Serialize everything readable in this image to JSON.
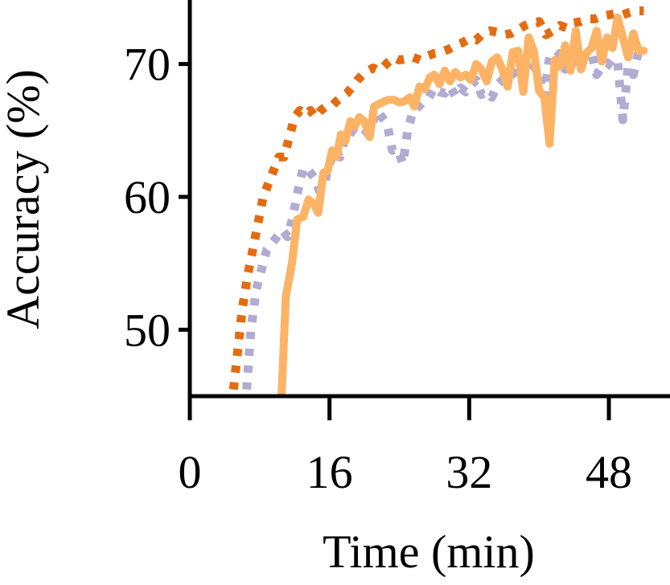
{
  "chart_data": {
    "type": "line",
    "title": "",
    "xlabel": "Time (min)",
    "ylabel": "Accuracy (%)",
    "xlim": [
      0,
      55
    ],
    "ylim": [
      45,
      75
    ],
    "xticks": [
      0,
      16,
      32,
      48
    ],
    "yticks": [
      50,
      60,
      70
    ],
    "grid": false,
    "legend": "none",
    "series": [
      {
        "name": "series-solid-orange",
        "color": "#FDB366",
        "style": "solid",
        "x": [
          10.5,
          11,
          11.7,
          12.3,
          13,
          13.6,
          14.2,
          14.7,
          15.3,
          15.8,
          16.3,
          16.8,
          17.3,
          17.8,
          18.4,
          18.9,
          19.4,
          20,
          20.6,
          21.1,
          21.7,
          22.3,
          22.8,
          23.4,
          24,
          24.6,
          25.2,
          25.7,
          26.3,
          26.9,
          27.5,
          28,
          28.6,
          29.2,
          29.8,
          30.4,
          31,
          31.6,
          32.2,
          32.8,
          33.4,
          34,
          34.6,
          35.2,
          35.8,
          36.4,
          37,
          37.6,
          38.2,
          38.8,
          39.4,
          40,
          40.6,
          41.2,
          41.8,
          42.4,
          43,
          43.6,
          44.2,
          44.8,
          45.4,
          46,
          46.6,
          47.2,
          47.8,
          48.4,
          49,
          49.6,
          50.2,
          50.8,
          51.4,
          52
        ],
        "y": [
          45,
          52.5,
          55,
          58.3,
          58.5,
          59.8,
          59.5,
          58.8,
          61.8,
          62,
          63.5,
          63,
          64.7,
          64.2,
          65.7,
          65.3,
          66,
          65.7,
          64.5,
          66.8,
          67,
          67.2,
          67.3,
          67.3,
          67.1,
          67.2,
          67.5,
          66.8,
          68.3,
          68.1,
          69,
          69.2,
          68.5,
          69.5,
          68.7,
          69.4,
          69,
          69.2,
          68.8,
          70,
          69.6,
          68.7,
          70.2,
          70.5,
          69.6,
          68.3,
          70.9,
          71,
          67.9,
          72,
          71,
          68,
          67.5,
          64,
          70.3,
          69.8,
          71.4,
          69.5,
          72.5,
          69.6,
          70.8,
          71.2,
          72.5,
          70.2,
          72,
          71.2,
          73.5,
          72,
          70.5,
          72.3,
          71,
          71
        ]
      },
      {
        "name": "series-dotted-dark-orange",
        "color": "#E56B10",
        "style": "dotted",
        "x": [
          5,
          5.5,
          6,
          6.6,
          7.2,
          7.8,
          8.4,
          9,
          9.6,
          10.2,
          10.8,
          11.4,
          12,
          12.6,
          13.2,
          13.8,
          14.4,
          15,
          15.6,
          16.2,
          16.8,
          17.4,
          18,
          18.6,
          19.2,
          19.8,
          20.4,
          21,
          21.6,
          22.2,
          22.8,
          23.4,
          24,
          24.8,
          25.6,
          26.4,
          27.2,
          28,
          28.8,
          29.6,
          30.4,
          31.2,
          32,
          32.8,
          33.6,
          34.4,
          35.2,
          36,
          36.8,
          37.6,
          38.4,
          39.2,
          40,
          40.8,
          41.6,
          42.4,
          43.2,
          44,
          44.8,
          45.6,
          46.4,
          47.2,
          48,
          48.8,
          49.6,
          50.4,
          51.2,
          52
        ],
        "y": [
          45.5,
          48.5,
          51.5,
          54,
          56,
          58,
          60,
          61,
          62,
          63,
          63,
          64.5,
          66,
          66.5,
          66.2,
          66.5,
          66,
          66.5,
          66.8,
          66.8,
          67.2,
          67.5,
          67.8,
          68.3,
          68.8,
          69.2,
          69.5,
          69.7,
          69.5,
          69.8,
          70.2,
          70.5,
          70.3,
          70.4,
          70.5,
          70.3,
          70.6,
          70.8,
          70.9,
          71.1,
          71.4,
          71.6,
          71.9,
          71.8,
          72.3,
          72.5,
          72.4,
          72.2,
          72.3,
          72.6,
          72.9,
          73.1,
          73.2,
          72.2,
          72.5,
          72.9,
          72.7,
          73.1,
          73.2,
          73.4,
          73.4,
          73.6,
          73.7,
          73.8,
          73.7,
          73.9,
          74,
          74
        ]
      },
      {
        "name": "series-dotted-lavender",
        "color": "#B2ABD2",
        "style": "dotted",
        "x": [
          6.5,
          7,
          7.6,
          8.2,
          8.8,
          9.4,
          10,
          10.6,
          11.2,
          11.8,
          12.4,
          13,
          13.6,
          14.2,
          14.8,
          15.4,
          16,
          16.6,
          17.2,
          17.8,
          18.4,
          19,
          19.6,
          20.2,
          20.8,
          21.4,
          22,
          22.6,
          23.2,
          23.8,
          24.4,
          25,
          25.6,
          26.2,
          26.8,
          27.4,
          28,
          28.6,
          29.2,
          29.8,
          30.4,
          31,
          31.6,
          32.2,
          32.8,
          33.4,
          34,
          34.6,
          35.2,
          35.8,
          36.4,
          37,
          37.6,
          38.2,
          38.8,
          39.4,
          40,
          40.6,
          41.2,
          41.8,
          42.4,
          43,
          43.6,
          44.2,
          44.8,
          45.4,
          46,
          46.6,
          47.2,
          47.8,
          48.4,
          49,
          49.6,
          50.2,
          50.8,
          51.4
        ],
        "y": [
          45.5,
          50,
          53,
          54.5,
          56,
          56.5,
          57,
          57.5,
          57,
          58.5,
          60.5,
          62.2,
          62,
          61.5,
          60.5,
          61,
          62.5,
          63.5,
          63,
          64.5,
          65,
          64.8,
          64.5,
          64.8,
          65.3,
          66.5,
          66,
          65.5,
          63.5,
          63.6,
          62.5,
          65.2,
          66.5,
          66.8,
          67.2,
          67.5,
          68.2,
          67.9,
          67.8,
          68.3,
          67.6,
          68.2,
          67.9,
          68.4,
          68.8,
          67.7,
          67.9,
          67.5,
          68.4,
          68.8,
          69,
          69.4,
          68.8,
          69.7,
          69.4,
          69.8,
          69.4,
          67.6,
          70.5,
          70.3,
          70.8,
          69.6,
          71,
          69.8,
          70.4,
          70.6,
          70.9,
          69.2,
          69.8,
          70.1,
          69.8,
          70.2,
          65.8,
          69.8,
          69.2,
          71
        ]
      }
    ]
  }
}
